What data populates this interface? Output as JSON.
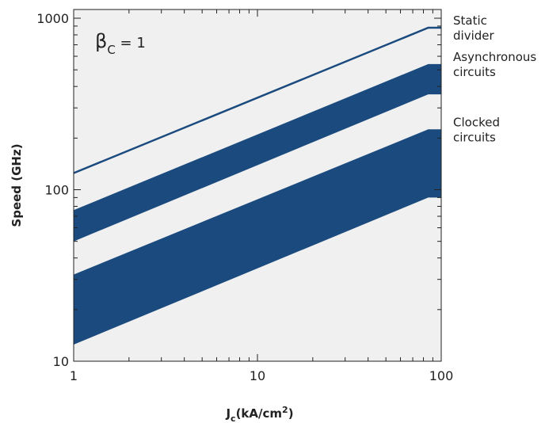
{
  "chart_data": {
    "type": "area",
    "x_scale": "log",
    "y_scale": "log",
    "xlim": [
      1,
      100
    ],
    "ylim": [
      10,
      1000
    ],
    "x_ticks": [
      {
        "value": 1,
        "label": "1"
      },
      {
        "value": 10,
        "label": "10"
      },
      {
        "value": 100,
        "label": "100"
      }
    ],
    "y_ticks": [
      {
        "value": 10,
        "label": "10"
      },
      {
        "value": 100,
        "label": "100"
      },
      {
        "value": 1000,
        "label": "1000"
      }
    ],
    "xlabel": {
      "main": "J",
      "sub": "c",
      "rest": "(kA/cm",
      "sup": "2",
      "close": ")"
    },
    "ylabel": "Speed (GHz)",
    "annotation": {
      "symbol": "β",
      "sub": "C",
      "rest": " = 1"
    },
    "grid": false,
    "plot_background": "#f0f0f0",
    "series_color": "#1a4a7e",
    "series": [
      {
        "kind": "line",
        "label_lines": [
          "Static",
          "divider"
        ],
        "points": [
          [
            1,
            125
          ],
          [
            85,
            880
          ],
          [
            100,
            880
          ]
        ]
      },
      {
        "kind": "band",
        "label_lines": [
          "Asynchronous",
          "circuits"
        ],
        "upper": [
          [
            1,
            76
          ],
          [
            85,
            540
          ],
          [
            100,
            540
          ]
        ],
        "lower": [
          [
            1,
            50
          ],
          [
            85,
            360
          ],
          [
            100,
            360
          ]
        ]
      },
      {
        "kind": "band",
        "label_lines": [
          "Clocked",
          "circuits"
        ],
        "upper": [
          [
            1,
            32
          ],
          [
            85,
            225
          ],
          [
            100,
            225
          ]
        ],
        "lower": [
          [
            1,
            12.5
          ],
          [
            85,
            90
          ],
          [
            100,
            90
          ]
        ]
      }
    ]
  }
}
